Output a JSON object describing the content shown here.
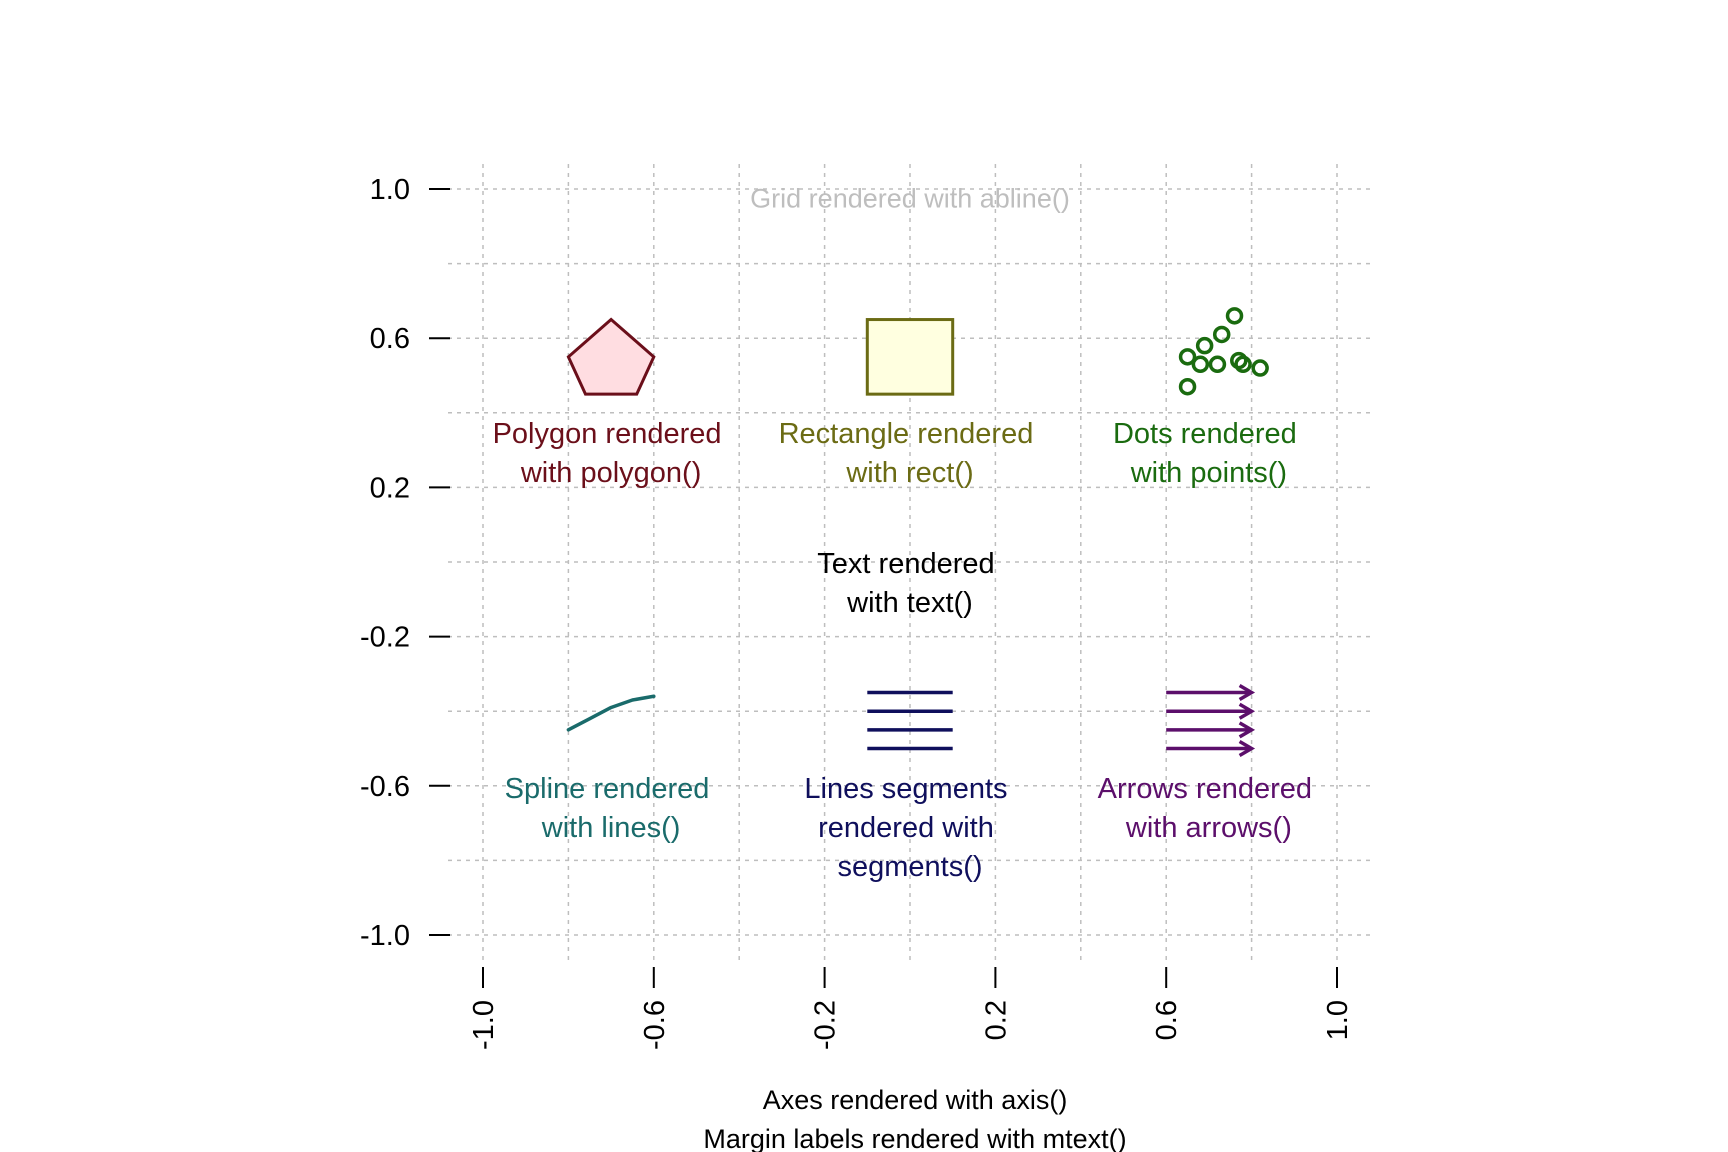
{
  "plot": {
    "x_axis": {
      "range": [
        -1.0,
        1.0
      ],
      "ticks": [
        -1.0,
        -0.6,
        -0.2,
        0.2,
        0.6,
        1.0
      ],
      "tick_labels": [
        "-1.0",
        "-0.6",
        "-0.2",
        "0.2",
        "0.6",
        "1.0"
      ]
    },
    "y_axis": {
      "range": [
        -1.0,
        1.0
      ],
      "ticks": [
        1.0,
        0.6,
        0.2,
        -0.2,
        -0.6,
        -1.0
      ],
      "tick_labels": [
        "1.0",
        "0.6",
        "0.2",
        "-0.2",
        "-0.6",
        "-1.0"
      ]
    },
    "grid": {
      "x": [
        -1.0,
        -0.8,
        -0.6,
        -0.4,
        -0.2,
        0.0,
        0.2,
        0.4,
        0.6,
        0.8,
        1.0
      ],
      "y": [
        1.0,
        0.8,
        0.6,
        0.4,
        0.2,
        0.0,
        -0.2,
        -0.4,
        -0.6,
        -0.8,
        -1.0
      ],
      "color": "#bebebe",
      "label": "Grid rendered with abline()"
    },
    "margin_labels": [
      "Axes rendered with axis()",
      "Margin labels rendered with mtext()"
    ]
  },
  "shapes": {
    "polygon": {
      "label_lines": [
        "Polygon rendered",
        "with polygon()"
      ],
      "stroke": "#6b0f1a",
      "fill": "#ffdde1",
      "vertices": [
        [
          -0.7,
          0.65
        ],
        [
          -0.6,
          0.55
        ],
        [
          -0.64,
          0.45
        ],
        [
          -0.76,
          0.45
        ],
        [
          -0.8,
          0.55
        ]
      ]
    },
    "rect": {
      "label_lines": [
        "Rectangle rendered",
        "with rect()"
      ],
      "stroke": "#6b6b14",
      "fill": "#ffffe0",
      "bounds": [
        -0.1,
        0.45,
        0.1,
        0.65
      ]
    },
    "points": {
      "label_lines": [
        "Dots rendered",
        "with points()"
      ],
      "color": "#1a6b0f",
      "coords": [
        [
          0.65,
          0.47
        ],
        [
          0.65,
          0.55
        ],
        [
          0.68,
          0.53
        ],
        [
          0.69,
          0.58
        ],
        [
          0.72,
          0.53
        ],
        [
          0.73,
          0.61
        ],
        [
          0.76,
          0.66
        ],
        [
          0.77,
          0.54
        ],
        [
          0.78,
          0.53
        ],
        [
          0.82,
          0.52
        ]
      ]
    },
    "text": {
      "label_lines": [
        "Text rendered",
        "with text()"
      ],
      "color": "#000000"
    },
    "spline": {
      "label_lines": [
        "Spline rendered",
        "with lines()"
      ],
      "color": "#1a6b6b",
      "coords": [
        [
          -0.8,
          -0.45
        ],
        [
          -0.75,
          -0.42
        ],
        [
          -0.7,
          -0.39
        ],
        [
          -0.65,
          -0.37
        ],
        [
          -0.6,
          -0.36
        ]
      ]
    },
    "segments": {
      "label_lines": [
        "Lines segments",
        "rendered with",
        "segments()"
      ],
      "color": "#0f0f5c",
      "x_range": [
        -0.1,
        0.1
      ],
      "y_values": [
        -0.35,
        -0.4,
        -0.45,
        -0.5
      ]
    },
    "arrows": {
      "label_lines": [
        "Arrows rendered",
        "with arrows()"
      ],
      "color": "#5c0f6b",
      "x_range": [
        0.6,
        0.8
      ],
      "y_values": [
        -0.35,
        -0.4,
        -0.45,
        -0.5
      ]
    }
  }
}
